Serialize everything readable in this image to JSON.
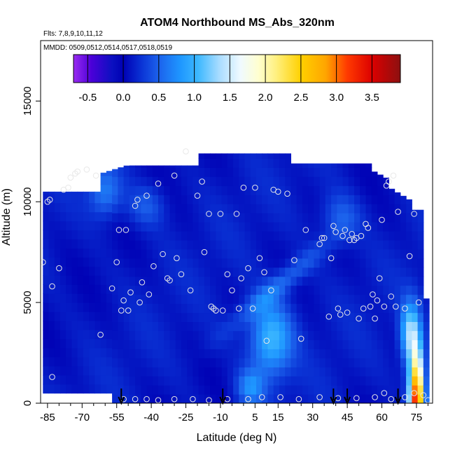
{
  "chart_data": {
    "type": "heatmap",
    "title": "ATOM4 Northbound MS_Abs_320nm",
    "flights_label": "Flts: 7,8,9,10,11,12",
    "dates_label": "MMDD: 0509,0512,0514,0517,0518,0519",
    "xlabel": "Latitude (deg N)",
    "ylabel": "Altitude (m)",
    "xlim": [
      -88,
      82
    ],
    "ylim": [
      0,
      18000
    ],
    "x_ticks": [
      -85,
      -70,
      -55,
      -40,
      -25,
      -10,
      5,
      15,
      30,
      45,
      60,
      75
    ],
    "x_minor_ticks": [
      -80,
      -75,
      -65,
      -60,
      -50,
      -45,
      -35,
      -30,
      -20,
      -15,
      -5,
      0,
      10,
      20,
      25,
      35,
      40,
      50,
      55,
      65,
      70,
      80
    ],
    "y_ticks": [
      0,
      5000,
      10000,
      15000
    ],
    "colorbar": {
      "min": -0.7,
      "max": 3.9,
      "ticks": [
        -0.5,
        0.0,
        0.5,
        1.0,
        1.5,
        2.0,
        2.5,
        3.0,
        3.5
      ],
      "tick_labels": [
        "-0.5",
        "0.0",
        "0.5",
        "1.0",
        "1.5",
        "2.0",
        "2.5",
        "3.0",
        "3.5"
      ],
      "divisions": [
        -0.5,
        0.0,
        0.5,
        1.0,
        1.5,
        2.0,
        2.5,
        3.0,
        3.5
      ],
      "stops": [
        {
          "v": -0.7,
          "c": "#9a2bf0"
        },
        {
          "v": -0.45,
          "c": "#4b00d8"
        },
        {
          "v": -0.15,
          "c": "#0a10c0"
        },
        {
          "v": 0.0,
          "c": "#0000b4"
        },
        {
          "v": 0.25,
          "c": "#0a32d4"
        },
        {
          "v": 0.5,
          "c": "#1c62ec"
        },
        {
          "v": 0.8,
          "c": "#1e96ff"
        },
        {
          "v": 1.05,
          "c": "#3cb8ff"
        },
        {
          "v": 1.35,
          "c": "#a8dcff"
        },
        {
          "v": 1.65,
          "c": "#f0faff"
        },
        {
          "v": 1.9,
          "c": "#ffffd0"
        },
        {
          "v": 2.15,
          "c": "#fff080"
        },
        {
          "v": 2.5,
          "c": "#ffd000"
        },
        {
          "v": 2.85,
          "c": "#ffa500"
        },
        {
          "v": 3.15,
          "c": "#ff3a00"
        },
        {
          "v": 3.5,
          "c": "#dc0000"
        },
        {
          "v": 3.9,
          "c": "#8c1010"
        }
      ]
    },
    "profile_arrow_latitudes": [
      -53,
      -9,
      39,
      45,
      67
    ],
    "flight_profile_points": [
      [
        -87,
        7000
      ],
      [
        -85,
        10000
      ],
      [
        -84,
        10100
      ],
      [
        -83,
        5800
      ],
      [
        -80,
        6700
      ],
      [
        -78,
        10600
      ],
      [
        -76,
        10700
      ],
      [
        -75,
        11200
      ],
      [
        -73,
        11400
      ],
      [
        -72,
        11500
      ],
      [
        -68,
        11600
      ],
      [
        -64,
        11300
      ],
      [
        -62,
        3400
      ],
      [
        -57,
        5700
      ],
      [
        -55,
        7000
      ],
      [
        -54,
        8600
      ],
      [
        -53,
        4600
      ],
      [
        -52,
        5100
      ],
      [
        -51,
        8600
      ],
      [
        -50,
        4600
      ],
      [
        -49,
        5500
      ],
      [
        -47,
        9800
      ],
      [
        -46,
        10100
      ],
      [
        -45,
        5000
      ],
      [
        -44,
        6000
      ],
      [
        -42,
        10300
      ],
      [
        -41,
        5400
      ],
      [
        -39,
        6800
      ],
      [
        -37,
        10900
      ],
      [
        -35,
        7400
      ],
      [
        -33,
        6200
      ],
      [
        -32,
        6100
      ],
      [
        -30,
        11300
      ],
      [
        -29,
        7200
      ],
      [
        -27,
        6400
      ],
      [
        -25,
        12500
      ],
      [
        -23,
        5600
      ],
      [
        -20,
        10300
      ],
      [
        -18,
        11000
      ],
      [
        -17,
        7500
      ],
      [
        -15,
        9400
      ],
      [
        -14,
        4800
      ],
      [
        -13,
        4700
      ],
      [
        -12,
        4600
      ],
      [
        -10,
        9400
      ],
      [
        -9,
        4600
      ],
      [
        -7,
        6400
      ],
      [
        -5,
        5600
      ],
      [
        -3,
        9400
      ],
      [
        -2,
        4700
      ],
      [
        -1,
        6200
      ],
      [
        0,
        10700
      ],
      [
        2,
        6700
      ],
      [
        4,
        4700
      ],
      [
        5,
        10700
      ],
      [
        7,
        7200
      ],
      [
        9,
        6500
      ],
      [
        10,
        3100
      ],
      [
        12,
        5600
      ],
      [
        13,
        10600
      ],
      [
        15,
        10500
      ],
      [
        19,
        10400
      ],
      [
        22,
        7100
      ],
      [
        25,
        3200
      ],
      [
        27,
        8600
      ],
      [
        33,
        7900
      ],
      [
        34,
        8200
      ],
      [
        35,
        8200
      ],
      [
        37,
        4300
      ],
      [
        38,
        7200
      ],
      [
        39,
        8800
      ],
      [
        40,
        8500
      ],
      [
        41,
        4700
      ],
      [
        42,
        4400
      ],
      [
        43,
        8300
      ],
      [
        44,
        8600
      ],
      [
        45,
        4500
      ],
      [
        46,
        8100
      ],
      [
        47,
        8400
      ],
      [
        48,
        8100
      ],
      [
        49,
        8200
      ],
      [
        50,
        4200
      ],
      [
        51,
        8300
      ],
      [
        52,
        4700
      ],
      [
        53,
        8900
      ],
      [
        54,
        8700
      ],
      [
        55,
        4800
      ],
      [
        56,
        5400
      ],
      [
        57,
        4200
      ],
      [
        58,
        5100
      ],
      [
        59,
        6200
      ],
      [
        60,
        9100
      ],
      [
        61,
        4800
      ],
      [
        62,
        10800
      ],
      [
        63,
        11000
      ],
      [
        64,
        5300
      ],
      [
        65,
        11300
      ],
      [
        66,
        4800
      ],
      [
        67,
        9500
      ],
      [
        70,
        4700
      ],
      [
        72,
        7300
      ],
      [
        74,
        9400
      ],
      [
        76,
        5000
      ],
      [
        78,
        400
      ],
      [
        -52,
        200
      ],
      [
        -47,
        200
      ],
      [
        -42,
        200
      ],
      [
        -37,
        150
      ],
      [
        -30,
        200
      ],
      [
        -22,
        200
      ],
      [
        -15,
        150
      ],
      [
        -7,
        200
      ],
      [
        2,
        200
      ],
      [
        8,
        300
      ],
      [
        16,
        300
      ],
      [
        24,
        200
      ],
      [
        33,
        300
      ],
      [
        41,
        250
      ],
      [
        49,
        250
      ],
      [
        57,
        300
      ],
      [
        61,
        500
      ],
      [
        64,
        200
      ],
      [
        70,
        300
      ],
      [
        74,
        500
      ],
      [
        80,
        150
      ],
      [
        -83,
        1300
      ]
    ]
  }
}
